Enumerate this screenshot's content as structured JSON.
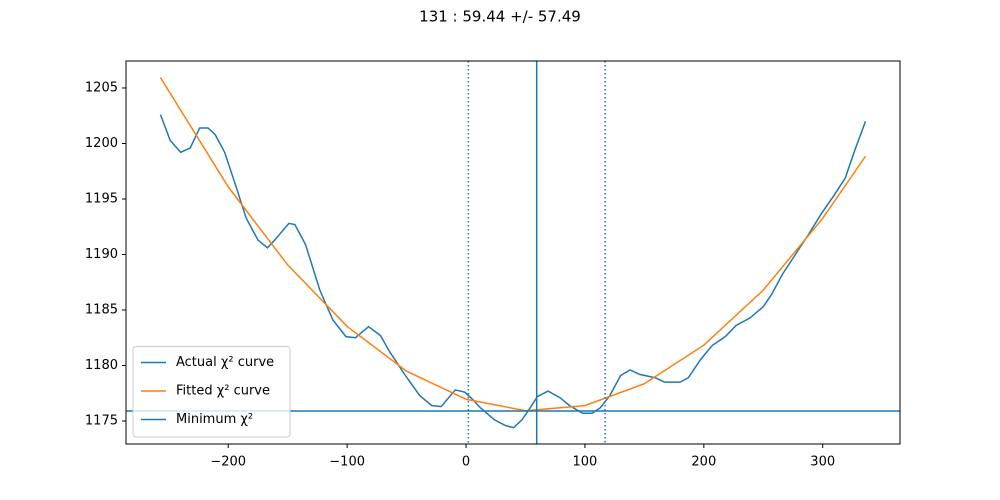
{
  "chart_data": {
    "type": "line",
    "title": "131 : 59.44 +/- 57.49",
    "xlim": [
      -286,
      365
    ],
    "ylim": [
      1172.93,
      1207.43
    ],
    "xticks": [
      {
        "value": -200,
        "label": "−200"
      },
      {
        "value": -100,
        "label": "−100"
      },
      0,
      100,
      200,
      300
    ],
    "yticks": [
      1175,
      1180,
      1185,
      1190,
      1195,
      1200,
      1205
    ],
    "legend": "lower left",
    "series": [
      {
        "name": "Actual χ² curve",
        "color": "#1f77b4",
        "x": [
          -257,
          -251,
          -249,
          -240,
          -232,
          -224,
          -217,
          -211,
          -203,
          -194,
          -185,
          -175,
          -167,
          -161,
          -149,
          -144,
          -135,
          -123,
          -112,
          -101,
          -93,
          -82,
          -72,
          -64,
          -51,
          -39,
          -29,
          -21,
          -9,
          -1,
          6,
          12,
          24,
          33,
          40,
          47,
          54,
          60,
          69,
          79,
          87,
          98,
          106,
          113,
          121,
          130,
          138,
          146,
          159,
          167,
          180,
          187,
          197,
          207,
          218,
          227,
          239,
          250,
          257,
          266,
          277,
          288,
          299,
          310,
          319,
          327,
          336
        ],
        "values": [
          1202.6,
          1200.9,
          1200.3,
          1199.2,
          1199.6,
          1201.4,
          1201.4,
          1200.8,
          1199.2,
          1196.3,
          1193.3,
          1191.3,
          1190.6,
          1191.3,
          1192.8,
          1192.7,
          1190.9,
          1186.8,
          1184.1,
          1182.6,
          1182.5,
          1183.5,
          1182.7,
          1181.2,
          1179.1,
          1177.3,
          1176.4,
          1176.3,
          1177.8,
          1177.6,
          1176.9,
          1176.2,
          1175.1,
          1174.6,
          1174.4,
          1175.1,
          1176.2,
          1177.2,
          1177.7,
          1177.1,
          1176.4,
          1175.7,
          1175.7,
          1176.2,
          1177.3,
          1179.1,
          1179.6,
          1179.2,
          1178.9,
          1178.5,
          1178.5,
          1178.9,
          1180.5,
          1181.8,
          1182.6,
          1183.6,
          1184.3,
          1185.3,
          1186.4,
          1188.2,
          1190.0,
          1191.8,
          1193.7,
          1195.4,
          1196.9,
          1199.4,
          1202.0
        ]
      },
      {
        "name": "Fitted χ² curve",
        "color": "#ff7f0e",
        "x": [
          -257,
          -200,
          -150,
          -100,
          -50,
          0,
          50,
          100,
          150,
          200,
          250,
          300,
          336
        ],
        "values": [
          1205.93,
          1196.09,
          1189.06,
          1183.52,
          1179.49,
          1176.96,
          1175.93,
          1176.39,
          1178.36,
          1181.83,
          1186.79,
          1193.26,
          1198.85
        ]
      },
      {
        "name": "Minimum χ²",
        "color": "#1f77b4",
        "hline": 1175.9
      }
    ],
    "vlines": [
      {
        "value": 1.95,
        "style": "dotted",
        "color": "#1f77b4"
      },
      {
        "value": 59.44,
        "style": "solid",
        "color": "#1f77b4"
      },
      {
        "value": 116.93,
        "style": "dotted",
        "color": "#1f77b4"
      }
    ]
  }
}
